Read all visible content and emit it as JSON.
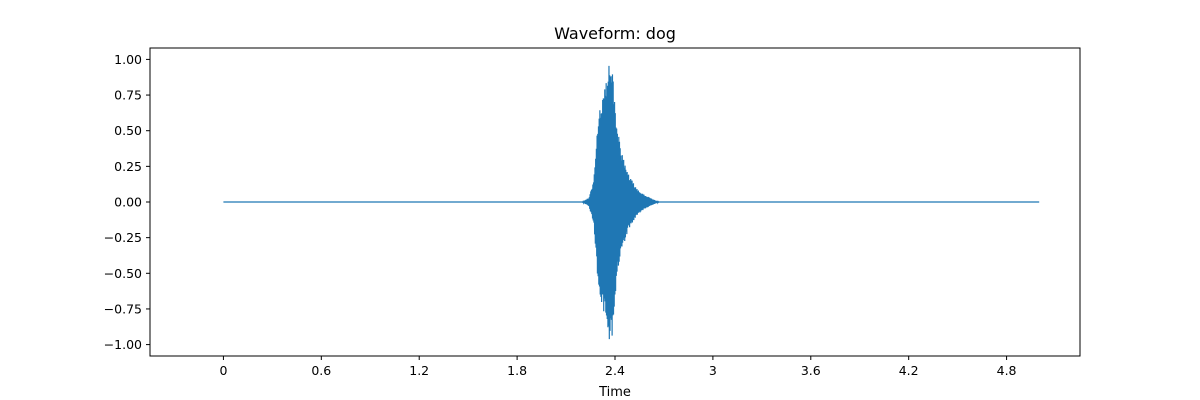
{
  "chart_data": {
    "type": "line",
    "title": "Waveform: dog",
    "xlabel": "Time",
    "ylabel": "",
    "xlim": [
      -0.45,
      5.25
    ],
    "ylim": [
      -1.08,
      1.08
    ],
    "x_ticks": [
      0,
      0.6,
      1.2,
      1.8,
      2.4,
      3.0,
      3.6,
      4.2,
      4.8
    ],
    "x_tick_labels": [
      "0",
      "0.6",
      "1.2",
      "1.8",
      "2.4",
      "3",
      "3.6",
      "4.2",
      "4.8"
    ],
    "y_ticks": [
      1.0,
      0.75,
      0.5,
      0.25,
      0.0,
      -0.25,
      -0.5,
      -0.75,
      -1.0
    ],
    "y_tick_labels": [
      "1.00",
      "0.75",
      "0.50",
      "0.25",
      "0.00",
      "−0.25",
      "−0.50",
      "−0.75",
      "−1.00"
    ],
    "grid": false,
    "series_color": "#1f77b4",
    "series": [
      {
        "x_start": 0.0,
        "x_end": 5.0,
        "envelope": {
          "x": [
            0.0,
            2.2,
            2.24,
            2.27,
            2.3,
            2.33,
            2.36,
            2.38,
            2.41,
            2.44,
            2.48,
            2.53,
            2.58,
            2.63,
            2.67,
            5.0
          ],
          "amplitude": [
            0.0,
            0.0,
            0.03,
            0.15,
            0.65,
            0.78,
            0.96,
            0.98,
            0.55,
            0.35,
            0.2,
            0.1,
            0.05,
            0.02,
            0.0,
            0.0
          ]
        }
      }
    ]
  }
}
